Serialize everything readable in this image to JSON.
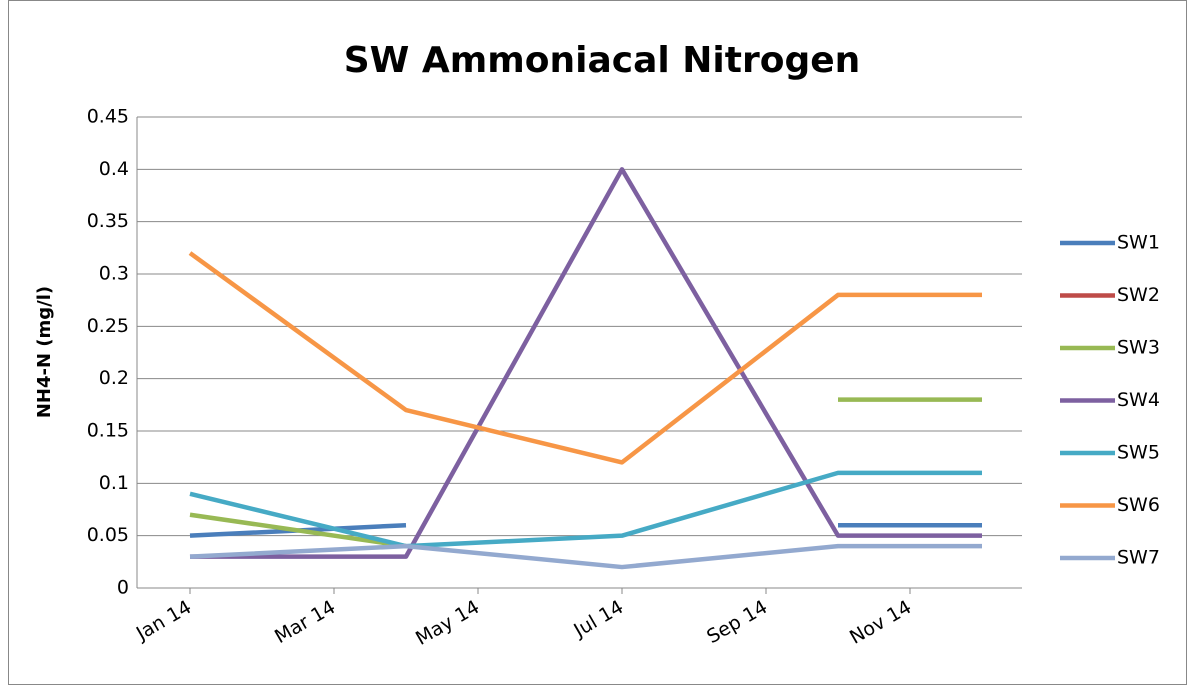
{
  "chart_data": {
    "type": "line",
    "title": "SW Ammoniacal Nitrogen",
    "y_label": "NH4-N (mg/l)",
    "x": [
      "2014-01",
      "2014-04",
      "2014-07",
      "2014-10",
      "2014-12"
    ],
    "xticks": [
      {
        "value": "2014-01",
        "label": "Jan 14"
      },
      {
        "value": "2014-03",
        "label": "Mar 14"
      },
      {
        "value": "2014-05",
        "label": "May 14"
      },
      {
        "value": "2014-07",
        "label": "Jul 14"
      },
      {
        "value": "2014-09",
        "label": "Sep 14"
      },
      {
        "value": "2014-11",
        "label": "Nov 14"
      }
    ],
    "ylim": [
      0,
      0.45
    ],
    "yticks": [
      0,
      0.05,
      0.1,
      0.15,
      0.2,
      0.25,
      0.3,
      0.35,
      0.4,
      0.45
    ],
    "grid": true,
    "legend": "right",
    "series": [
      {
        "name": "SW1",
        "color": "#4a7ebb",
        "values": [
          0.05,
          0.06,
          null,
          0.06,
          0.06
        ]
      },
      {
        "name": "SW2",
        "color": "#be4b48",
        "values": [
          null,
          null,
          null,
          null,
          null
        ]
      },
      {
        "name": "SW3",
        "color": "#98b954",
        "values": [
          0.07,
          0.04,
          null,
          0.18,
          0.18
        ]
      },
      {
        "name": "SW4",
        "color": "#7d60a0",
        "values": [
          0.03,
          0.03,
          0.4,
          0.05,
          0.05
        ]
      },
      {
        "name": "SW5",
        "color": "#46aac5",
        "values": [
          0.09,
          0.04,
          0.05,
          0.11,
          0.11
        ]
      },
      {
        "name": "SW6",
        "color": "#f79646",
        "values": [
          0.32,
          0.17,
          0.12,
          0.28,
          0.28
        ]
      },
      {
        "name": "SW7",
        "color": "#93a9cf",
        "values": [
          0.03,
          0.04,
          0.02,
          0.04,
          0.04
        ]
      }
    ]
  }
}
